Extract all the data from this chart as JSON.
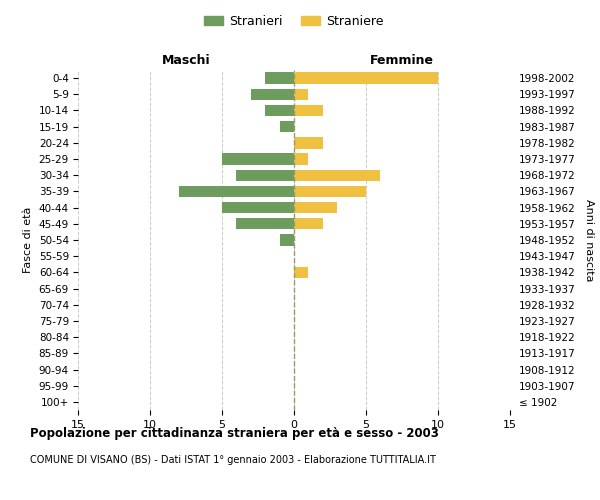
{
  "age_groups": [
    "100+",
    "95-99",
    "90-94",
    "85-89",
    "80-84",
    "75-79",
    "70-74",
    "65-69",
    "60-64",
    "55-59",
    "50-54",
    "45-49",
    "40-44",
    "35-39",
    "30-34",
    "25-29",
    "20-24",
    "15-19",
    "10-14",
    "5-9",
    "0-4"
  ],
  "birth_years": [
    "≤ 1902",
    "1903-1907",
    "1908-1912",
    "1913-1917",
    "1918-1922",
    "1923-1927",
    "1928-1932",
    "1933-1937",
    "1938-1942",
    "1943-1947",
    "1948-1952",
    "1953-1957",
    "1958-1962",
    "1963-1967",
    "1968-1972",
    "1973-1977",
    "1978-1982",
    "1983-1987",
    "1988-1992",
    "1993-1997",
    "1998-2002"
  ],
  "males": [
    0,
    0,
    0,
    0,
    0,
    0,
    0,
    0,
    0,
    0,
    1,
    4,
    5,
    8,
    4,
    5,
    0,
    1,
    2,
    3,
    2
  ],
  "females": [
    0,
    0,
    0,
    0,
    0,
    0,
    0,
    0,
    1,
    0,
    0,
    2,
    3,
    5,
    6,
    1,
    2,
    0,
    2,
    1,
    10
  ],
  "male_color": "#6e9c5e",
  "female_color": "#f0c040",
  "title": "Popolazione per cittadinanza straniera per età e sesso - 2003",
  "subtitle": "COMUNE DI VISANO (BS) - Dati ISTAT 1° gennaio 2003 - Elaborazione TUTTITALIA.IT",
  "xlabel_left": "Maschi",
  "xlabel_right": "Femmine",
  "ylabel_left": "Fasce di età",
  "ylabel_right": "Anni di nascita",
  "legend_males": "Stranieri",
  "legend_females": "Straniere",
  "xlim": 15,
  "background_color": "#ffffff",
  "grid_color": "#cccccc"
}
